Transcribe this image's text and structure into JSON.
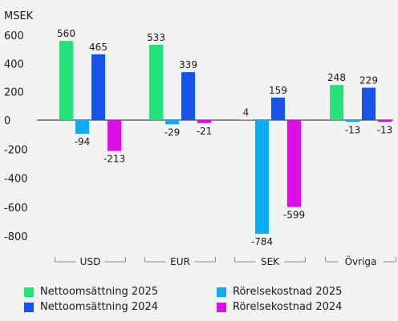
{
  "colors": {
    "background": "#f0f3f1",
    "series": [
      "#26e07a",
      "#12aaee",
      "#1753e6",
      "#d810e6"
    ]
  },
  "chart_data": {
    "type": "bar",
    "ylabel": "MSEK",
    "categories": [
      "USD",
      "EUR",
      "SEK",
      "Övriga"
    ],
    "ylim": [
      -800,
      600
    ],
    "yticks": [
      600,
      400,
      200,
      0,
      -200,
      -400,
      -600,
      -800
    ],
    "grid": false,
    "legend_position": "bottom",
    "series": [
      {
        "name": "Nettoomsättning 2025",
        "color": "#26e07a",
        "values": [
          560,
          533,
          4,
          248
        ]
      },
      {
        "name": "Rörelsekostnad 2025",
        "color": "#12aaee",
        "values": [
          -94,
          -29,
          -784,
          -13
        ]
      },
      {
        "name": "Nettoomsättning 2024",
        "color": "#1753e6",
        "values": [
          465,
          339,
          159,
          229
        ]
      },
      {
        "name": "Rörelsekostnad 2024",
        "color": "#d810e6",
        "values": [
          -213,
          -21,
          -599,
          -13
        ]
      }
    ]
  }
}
